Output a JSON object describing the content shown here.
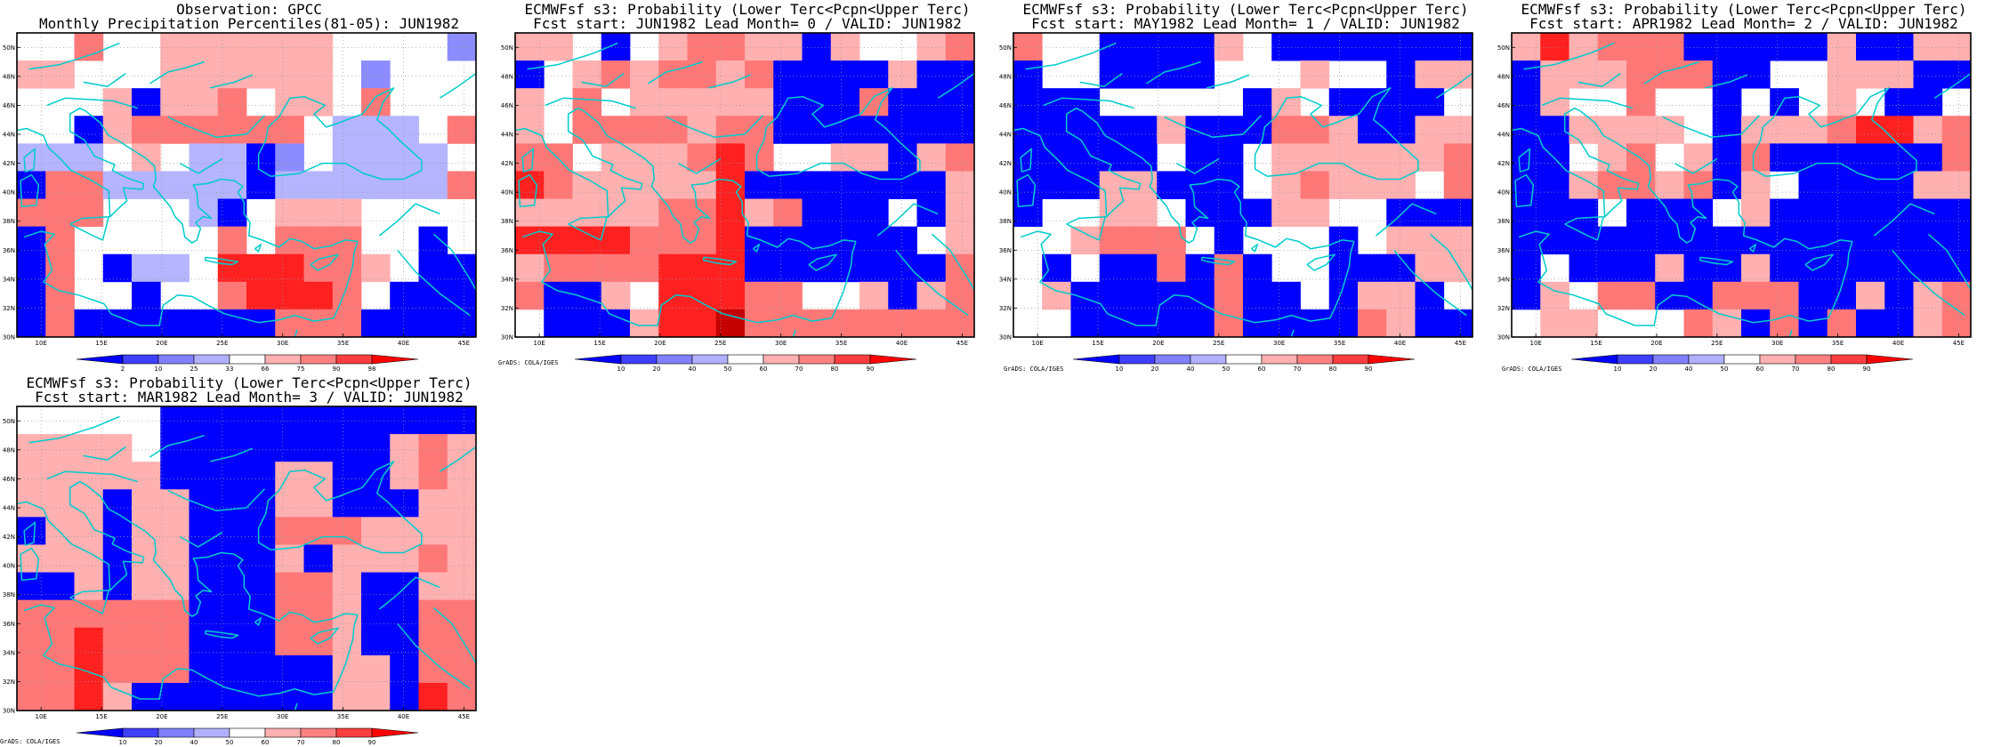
{
  "panels": [
    {
      "id": "obs",
      "title": "Observation: GPCC",
      "subtitle": "Monthly Precipitation Percentiles(81-05): JUN1982",
      "colorbar_labels": [
        "2",
        "10",
        "25",
        "33",
        "66",
        "75",
        "90",
        "98"
      ],
      "credit": "",
      "grid": [
        "..C..cccccc....W",
        "cc...cccccc.W...",
        "...cBccC.cc.C...",
        "..BcCCCCCC.PPP.C",
        "PPP.c.PPBW.PPPP.",
        "BCCPPPPPBPPPPPPC",
        "CCC...PB.ccc....",
        "BC.....C.CCC..B.",
        "BC.BPP.RRRCCc.BB",
        "BC..B..CRRRC.BBB",
        "BCBBBBBBBCCCBBBB"
      ]
    },
    {
      "id": "lead0",
      "title": "ECMWFsf s3: Probability (Lower Terc<Pcpn<Upper Terc)",
      "subtitle": "Fcst start: JUN1982  Lead Month= 0 / VALID: JUN1982",
      "colorbar_labels": [
        "10",
        "20",
        "40",
        "50",
        "60",
        "70",
        "80",
        "90"
      ],
      "credit": "GrADS: COLA/IGES",
      "grid": [
        "cc.B.cCCccBc..cC",
        "B.cCcCCcCBBBBcBB",
        "c.C.cccccBBBCBBB",
        "c.CCCCcCCBBBBBBB",
        "CC.cccCRC..ccBcC",
        "RCcccccRBBBBBBBc",
        "cccccCCRcCBBB.Bc",
        "RRRRCCCRBBBBBB.c",
        "cCCCCRRRBBBBBBBC",
        "CBBc.RRRCC..cBcC",
        ".BBBcRRXCCCCCCCC"
      ]
    },
    {
      "id": "lead1",
      "title": "ECMWFsf s3: Probability (Lower Terc<Pcpn<Upper Terc)",
      "subtitle": "Fcst start: MAY1982  Lead Month= 1 / VALID: JUN1982",
      "colorbar_labels": [
        "10",
        "20",
        "40",
        "50",
        "60",
        "70",
        "80",
        "90"
      ],
      "credit": "GrADS: COLA/IGES",
      "grid": [
        "C..BBBBc.BBBBBBB",
        "B..BBBB...c..Bcc",
        "BBB.....Bc.BBBB.",
        "BBBBBcBBBCCcBBcc",
        "BBBBB.BB.ccccccC",
        "BBBccBBB.cCccc.C",
        "B..cc.BBBcc..BBB",
        "..cCCC.B...B.ccc",
        ".B.BBCBCB..BBBcc",
        ".cBBBBBCBB.BccB.",
        "..BBBBBCBBBBCcBB"
      ]
    },
    {
      "id": "lead2",
      "title": "ECMWFsf s3: Probability (Lower Terc<Pcpn<Upper Terc)",
      "subtitle": "Fcst start: APR1982  Lead Month= 2 / VALID: JUN1982",
      "colorbar_labels": [
        "10",
        "20",
        "40",
        "50",
        "60",
        "70",
        "80",
        "90"
      ],
      "credit": "GrADS: COLA/IGES",
      "grid": [
        "cRcCCCBBBBBcBBcc",
        "BcccCCCBB..cccBB",
        "Bc..C..B.B.c.BB.",
        "BBcccc.BcccCRRcC",
        "BB.cC.cBCBBBBBBC",
        "BBcCCcCBc.BBBBcc",
        "BBB.BBB.cBBBBBBB",
        "BBBBBBBBBBBBBBBB",
        "B.BBBcBBcBBBBBBB",
        "Bc.CCBBCCCBBcBcC",
        ".cc...CcBCBCBBcC"
      ]
    },
    {
      "id": "lead3",
      "title": "ECMWFsf s3: Probability (Lower Terc<Pcpn<Upper Terc)",
      "subtitle": "Fcst start: MAR1982  Lead Month= 3 / VALID: JUN1982",
      "colorbar_labels": [
        "10",
        "20",
        "40",
        "50",
        "60",
        "70",
        "80",
        "90"
      ],
      "credit": "GrADS: COLA/IGES",
      "grid": [
        ".....BBBBBBBBBBB",
        "cccc.BBBBBBBBcCc",
        "cccccBBBBccBBcCc",
        "cccBccBBBccBBBcc",
        "BccBccBBBCCCcccc",
        "cccBccBBBcBcccCc",
        "BBcBccBBBCCcBBcc",
        "CCCCCCBBBCCcBBCC",
        "CCRCCCBBBCCcBBCC",
        "CCRCCCBBBBBccBCC",
        "CCRcBBBBBBBccBRC"
      ]
    }
  ],
  "axis": {
    "lat_labels": [
      "50N",
      "48N",
      "46N",
      "44N",
      "42N",
      "40N",
      "38N",
      "36N",
      "34N",
      "32N",
      "30N"
    ],
    "lon_labels": [
      "10E",
      "15E",
      "20E",
      "25E",
      "30E",
      "35E",
      "40E",
      "45E"
    ]
  },
  "colors": {
    "colorbar": [
      "#0000ff",
      "#3f3fff",
      "#8080ff",
      "#b0b0ff",
      "#ffffff",
      "#ffb0b0",
      "#ff8080",
      "#ff3f3f",
      "#ff0000"
    ],
    "cells": {
      "B": "#0000ff",
      "W": "#8c8cff",
      "P": "#b4b4ff",
      "c": "#ffb0b0",
      "C": "#ff7878",
      "R": "#ff2020",
      "X": "#c40000"
    },
    "coast": "#00cccc"
  }
}
